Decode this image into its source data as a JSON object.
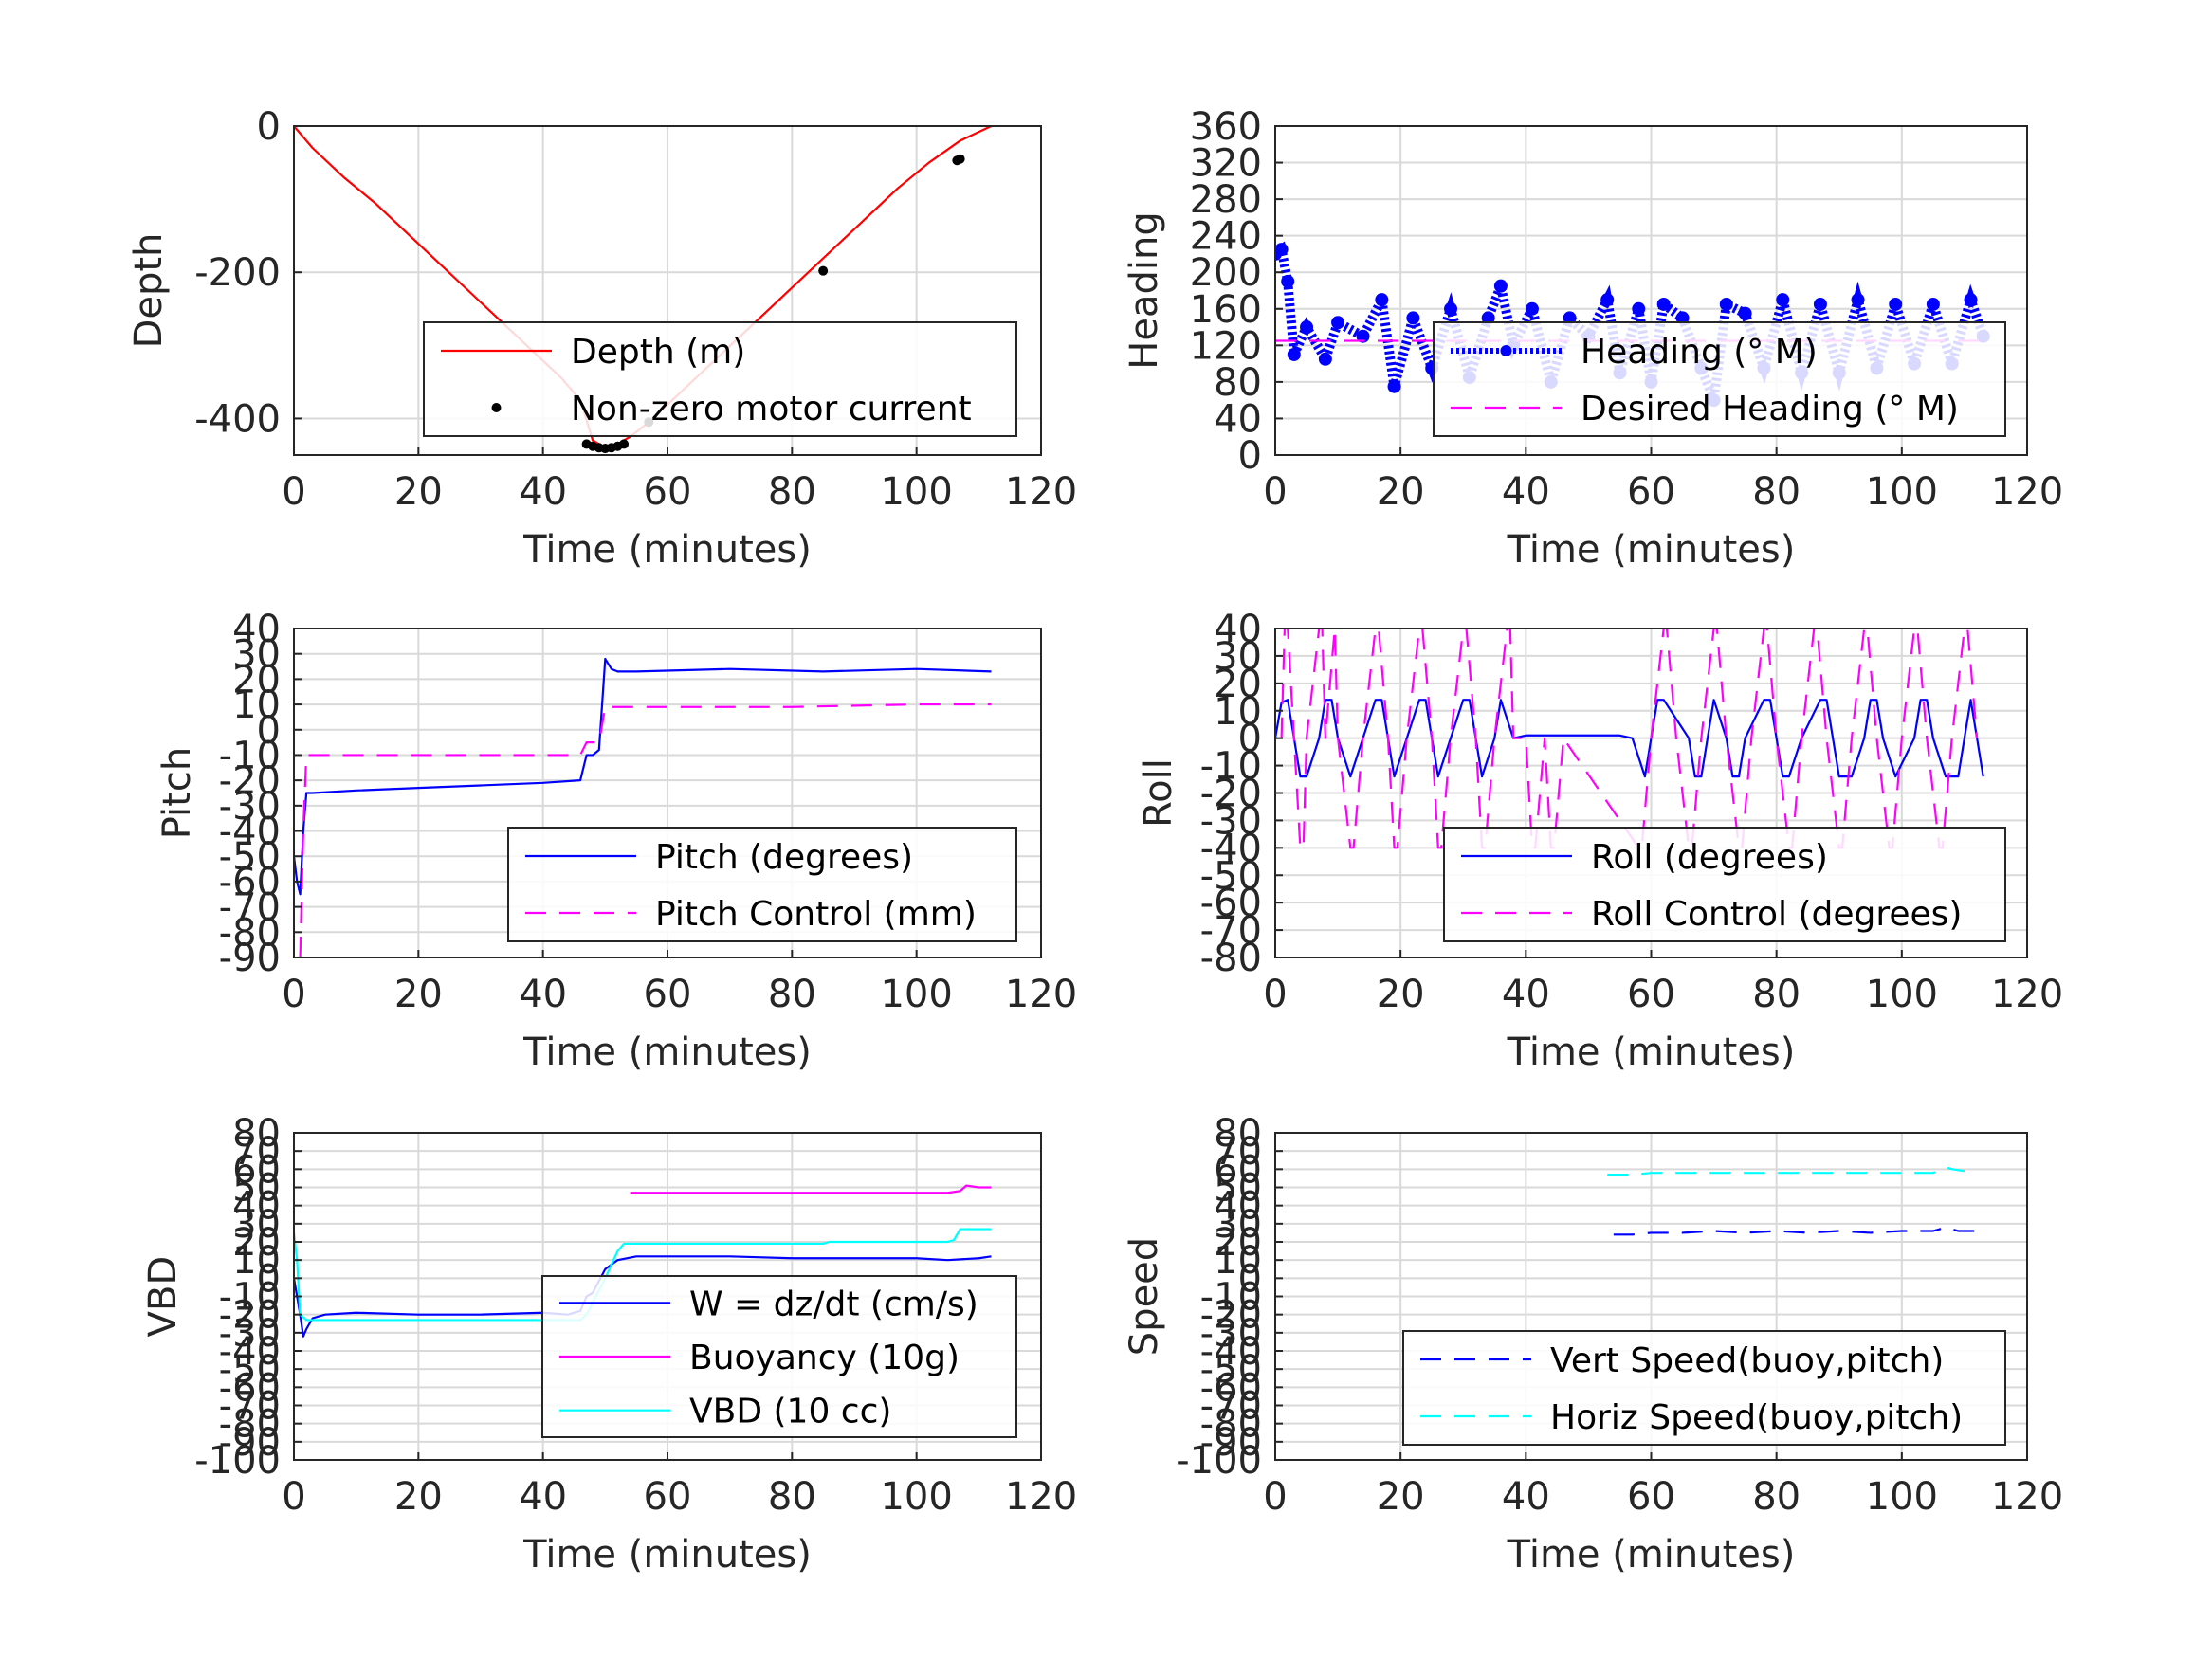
{
  "colors": {
    "red": "#ff0000",
    "blue": "#0000ff",
    "magenta": "#ff00ff",
    "cyan": "#00ffff",
    "black": "#000000",
    "grid": "#d9d9d9",
    "axis": "#262626"
  },
  "chart_data": [
    {
      "id": "depth",
      "type": "line",
      "xlabel": "Time (minutes)",
      "ylabel": "Depth",
      "xlim": [
        0,
        120
      ],
      "ylim": [
        -450,
        0
      ],
      "xticks": [
        0,
        20,
        40,
        60,
        80,
        100,
        120
      ],
      "yticks": [
        0,
        -200,
        -400
      ],
      "grid": true,
      "legend": {
        "position": "bottom-right",
        "entries": [
          "Depth (m)",
          "Non-zero motor current"
        ]
      },
      "series": [
        {
          "name": "Depth (m)",
          "style": "line",
          "color": "#ff0000",
          "x": [
            0,
            3,
            8,
            13,
            18,
            23,
            28,
            33,
            38,
            43,
            46,
            48,
            50,
            52,
            54,
            57,
            62,
            67,
            72,
            77,
            82,
            87,
            92,
            97,
            102,
            107,
            112
          ],
          "y": [
            0,
            -30,
            -70,
            -105,
            -145,
            -185,
            -225,
            -265,
            -305,
            -345,
            -375,
            -430,
            -440,
            -435,
            -425,
            -405,
            -365,
            -325,
            -285,
            -245,
            -205,
            -165,
            -125,
            -85,
            -50,
            -20,
            0
          ]
        },
        {
          "name": "Non-zero motor current",
          "style": "markers",
          "color": "#000000",
          "x": [
            47,
            48,
            49,
            50,
            51,
            52,
            53,
            57,
            85,
            106.5,
            107
          ],
          "y": [
            -435,
            -438,
            -440,
            -441,
            -440,
            -438,
            -435,
            -405,
            -198,
            -47,
            -45
          ]
        }
      ]
    },
    {
      "id": "heading",
      "type": "line",
      "xlabel": "Time (minutes)",
      "ylabel": "Heading",
      "xlim": [
        0,
        120
      ],
      "ylim": [
        0,
        360
      ],
      "xticks": [
        0,
        20,
        40,
        60,
        80,
        100,
        120
      ],
      "yticks": [
        0,
        40,
        80,
        120,
        160,
        200,
        240,
        280,
        320,
        360
      ],
      "grid": true,
      "legend": {
        "position": "bottom-right",
        "entries": [
          "Heading (° M)",
          "Desired Heading (° M)"
        ]
      },
      "series": [
        {
          "name": "Heading (° M)",
          "style": "markers",
          "color": "#0000ff",
          "x": [
            0,
            1,
            2,
            3,
            5,
            8,
            10,
            14,
            17,
            19,
            22,
            25,
            28,
            31,
            34,
            36,
            38,
            41,
            44,
            47,
            50,
            53,
            55,
            58,
            60,
            62,
            65,
            68,
            70,
            72,
            75,
            78,
            81,
            84,
            87,
            90,
            93,
            96,
            99,
            102,
            105,
            108,
            111,
            113
          ],
          "y": [
            220,
            225,
            190,
            110,
            140,
            105,
            145,
            130,
            170,
            75,
            150,
            95,
            160,
            85,
            150,
            185,
            120,
            160,
            80,
            150,
            130,
            170,
            90,
            160,
            80,
            165,
            150,
            95,
            60,
            165,
            155,
            95,
            170,
            90,
            165,
            90,
            170,
            95,
            165,
            100,
            165,
            100,
            170,
            130
          ]
        },
        {
          "name": "Desired Heading (° M)",
          "style": "dashed",
          "color": "#ff00ff",
          "x": [
            0,
            113
          ],
          "y": [
            125,
            125
          ]
        }
      ]
    },
    {
      "id": "pitch",
      "type": "line",
      "xlabel": "Time (minutes)",
      "ylabel": "Pitch",
      "xlim": [
        0,
        120
      ],
      "ylim": [
        -90,
        40
      ],
      "xticks": [
        0,
        20,
        40,
        60,
        80,
        100,
        120
      ],
      "yticks": [
        -90,
        -80,
        -70,
        -60,
        -50,
        -40,
        -30,
        -20,
        -10,
        0,
        10,
        20,
        30,
        40
      ],
      "grid": true,
      "legend": {
        "position": "bottom-right",
        "entries": [
          "Pitch (degrees)",
          "Pitch Control (mm)"
        ]
      },
      "series": [
        {
          "name": "Pitch (degrees)",
          "style": "line",
          "color": "#0000ff",
          "x": [
            0,
            0.5,
            1,
            1.5,
            2,
            3,
            10,
            20,
            30,
            40,
            46,
            47,
            48,
            49,
            50,
            51,
            52,
            55,
            70,
            85,
            100,
            112
          ],
          "y": [
            -50,
            -60,
            -65,
            -40,
            -25,
            -25,
            -24,
            -23,
            -22,
            -21,
            -20,
            -10,
            -10,
            -8,
            28,
            24,
            23,
            23,
            24,
            23,
            24,
            23
          ]
        },
        {
          "name": "Pitch Control (mm)",
          "style": "dashed",
          "color": "#ff00ff",
          "x": [
            1,
            1.5,
            2,
            5,
            20,
            40,
            46,
            47,
            49,
            50,
            51,
            60,
            80,
            100,
            112
          ],
          "y": [
            -90,
            -40,
            -10,
            -10,
            -10,
            -10,
            -10,
            -5,
            -5,
            9,
            9,
            9,
            9,
            10,
            10
          ]
        }
      ]
    },
    {
      "id": "roll",
      "type": "line",
      "xlabel": "Time (minutes)",
      "ylabel": "Roll",
      "xlim": [
        0,
        120
      ],
      "ylim": [
        -80,
        40
      ],
      "xticks": [
        0,
        20,
        40,
        60,
        80,
        100,
        120
      ],
      "yticks": [
        -80,
        -70,
        -60,
        -50,
        -40,
        -30,
        -20,
        -10,
        0,
        10,
        20,
        30,
        40
      ],
      "grid": true,
      "legend": {
        "position": "bottom-right",
        "entries": [
          "Roll (degrees)",
          "Roll Control (degrees)"
        ]
      },
      "series": [
        {
          "name": "Roll (degrees)",
          "style": "line",
          "color": "#0000ff",
          "x": [
            0,
            1,
            2,
            3,
            4,
            5,
            7,
            8,
            9,
            10,
            12,
            14,
            16,
            17,
            18,
            19,
            21,
            23,
            24,
            25,
            26,
            28,
            30,
            31,
            32,
            33,
            35,
            36,
            38,
            40,
            45,
            50,
            55,
            57,
            59,
            60,
            61,
            62,
            66,
            67,
            68,
            69,
            70,
            72,
            73,
            74,
            75,
            78,
            79,
            80,
            81,
            82,
            84,
            87,
            88,
            89,
            90,
            92,
            94,
            95,
            96,
            97,
            99,
            102,
            103,
            104,
            105,
            107,
            109,
            110,
            111,
            112,
            113
          ],
          "y": [
            0,
            13,
            14,
            0,
            -14,
            -14,
            0,
            14,
            14,
            0,
            -14,
            0,
            14,
            14,
            0,
            -14,
            0,
            14,
            14,
            0,
            -14,
            0,
            14,
            14,
            0,
            -14,
            0,
            14,
            0,
            1,
            1,
            1,
            1,
            0,
            -14,
            0,
            14,
            14,
            0,
            -14,
            -14,
            0,
            14,
            0,
            -14,
            -14,
            0,
            14,
            14,
            0,
            -14,
            -14,
            0,
            14,
            14,
            0,
            -14,
            -14,
            0,
            14,
            14,
            0,
            -14,
            0,
            14,
            14,
            0,
            -14,
            -14,
            0,
            14,
            0,
            -14
          ]
        },
        {
          "name": "Roll Control (degrees)",
          "style": "dashed",
          "color": "#ff00ff",
          "x": [
            1,
            1.5,
            2,
            3,
            4,
            4.5,
            5,
            7,
            7.5,
            8,
            9.5,
            10,
            12,
            12.5,
            14,
            16,
            16.5,
            18,
            19,
            19.5,
            21,
            23,
            23.5,
            25,
            26,
            26.5,
            28,
            30,
            30.5,
            32,
            33,
            33.5,
            35,
            37,
            37.5,
            38,
            40,
            41,
            41.5,
            43,
            44,
            44.5,
            46,
            58,
            58.5,
            60,
            62,
            62.5,
            64,
            66,
            66.5,
            68,
            70,
            70.5,
            72,
            74,
            74.5,
            76,
            78,
            78.5,
            80,
            82,
            82.5,
            84,
            86,
            86.5,
            88,
            90,
            90.5,
            92,
            94,
            94.5,
            96,
            98,
            98.5,
            100,
            102,
            102.5,
            104,
            106,
            106.5,
            108,
            110,
            110.5,
            112
          ],
          "y": [
            0,
            40,
            40,
            0,
            -40,
            -40,
            0,
            40,
            40,
            0,
            40,
            0,
            -40,
            -40,
            0,
            40,
            40,
            0,
            -40,
            -40,
            0,
            40,
            40,
            0,
            -40,
            -40,
            0,
            40,
            40,
            0,
            -40,
            -40,
            0,
            40,
            40,
            0,
            0,
            -40,
            -40,
            0,
            -40,
            -40,
            0,
            -40,
            -40,
            0,
            40,
            40,
            0,
            -40,
            -40,
            0,
            40,
            40,
            0,
            -40,
            -40,
            0,
            40,
            40,
            0,
            -40,
            -40,
            0,
            40,
            40,
            0,
            -40,
            -40,
            0,
            40,
            40,
            0,
            -40,
            -40,
            0,
            40,
            40,
            0,
            -40,
            -40,
            0,
            40,
            40,
            0
          ]
        }
      ]
    },
    {
      "id": "vbd",
      "type": "line",
      "xlabel": "Time (minutes)",
      "ylabel": "VBD",
      "xlim": [
        0,
        120
      ],
      "ylim": [
        -100,
        80
      ],
      "xticks": [
        0,
        20,
        40,
        60,
        80,
        100,
        120
      ],
      "yticks": [
        -100,
        -90,
        -80,
        -70,
        -60,
        -50,
        -40,
        -30,
        -20,
        -10,
        0,
        10,
        20,
        30,
        40,
        50,
        60,
        70,
        80
      ],
      "grid": true,
      "legend": {
        "position": "bottom-right",
        "entries": [
          "W = dz/dt (cm/s)",
          "Buoyancy (10g)",
          "VBD (10 cc)"
        ]
      },
      "series": [
        {
          "name": "W = dz/dt (cm/s)",
          "style": "line",
          "color": "#0000ff",
          "x": [
            0,
            0.5,
            1,
            1.5,
            2,
            3,
            5,
            10,
            20,
            30,
            40,
            44,
            46,
            47,
            48,
            50,
            52,
            55,
            60,
            70,
            80,
            90,
            100,
            105,
            110,
            112
          ],
          "y": [
            0,
            -10,
            -20,
            -32,
            -28,
            -22,
            -20,
            -19,
            -20,
            -20,
            -19,
            -20,
            -18,
            -10,
            -8,
            5,
            10,
            12,
            12,
            12,
            11,
            11,
            11,
            10,
            11,
            12
          ]
        },
        {
          "name": "Buoyancy (10g)",
          "style": "line",
          "color": "#ff00ff",
          "x": [
            54,
            60,
            70,
            80,
            90,
            100,
            105,
            107,
            108,
            110,
            112
          ],
          "y": [
            47,
            47,
            47,
            47,
            47,
            47,
            47,
            48,
            51,
            50,
            50
          ]
        },
        {
          "name": "VBD (10 cc)",
          "style": "line",
          "color": "#00ffff",
          "x": [
            0,
            0.5,
            1,
            2,
            3,
            10,
            20,
            30,
            40,
            46,
            47,
            50,
            52,
            53,
            55,
            60,
            70,
            80,
            85,
            86,
            100,
            105,
            106,
            107,
            110,
            112
          ],
          "y": [
            25,
            10,
            -20,
            -23,
            -23,
            -23,
            -23,
            -23,
            -23,
            -23,
            -20,
            0,
            15,
            19,
            19,
            19,
            19,
            19,
            19,
            20,
            20,
            20,
            21,
            27,
            27,
            27
          ]
        }
      ]
    },
    {
      "id": "speed",
      "type": "line",
      "xlabel": "Time (minutes)",
      "ylabel": "Speed",
      "xlim": [
        0,
        120
      ],
      "ylim": [
        -100,
        80
      ],
      "xticks": [
        0,
        20,
        40,
        60,
        80,
        100,
        120
      ],
      "yticks": [
        -100,
        -90,
        -80,
        -70,
        -60,
        -50,
        -40,
        -30,
        -20,
        -10,
        0,
        10,
        20,
        30,
        40,
        50,
        60,
        70,
        80
      ],
      "grid": true,
      "legend": {
        "position": "bottom-right",
        "entries": [
          "Vert Speed(buoy,pitch)",
          "Horiz Speed(buoy,pitch)"
        ]
      },
      "series": [
        {
          "name": "Vert Speed(buoy,pitch)",
          "style": "dashed",
          "color": "#0000ff",
          "x": [
            54,
            57,
            60,
            65,
            70,
            75,
            80,
            85,
            90,
            95,
            100,
            105,
            107,
            109,
            112
          ],
          "y": [
            24,
            24,
            25,
            25,
            26,
            25,
            26,
            25,
            26,
            25,
            26,
            26,
            28,
            26,
            26
          ]
        },
        {
          "name": "Horiz Speed(buoy,pitch)",
          "style": "dashed",
          "color": "#00ffff",
          "x": [
            53,
            57,
            60,
            65,
            70,
            75,
            80,
            85,
            90,
            95,
            100,
            105,
            107,
            108,
            110
          ],
          "y": [
            57,
            57,
            58,
            58,
            58,
            58,
            58,
            58,
            58,
            58,
            58,
            58,
            61,
            60,
            59
          ]
        }
      ]
    }
  ]
}
